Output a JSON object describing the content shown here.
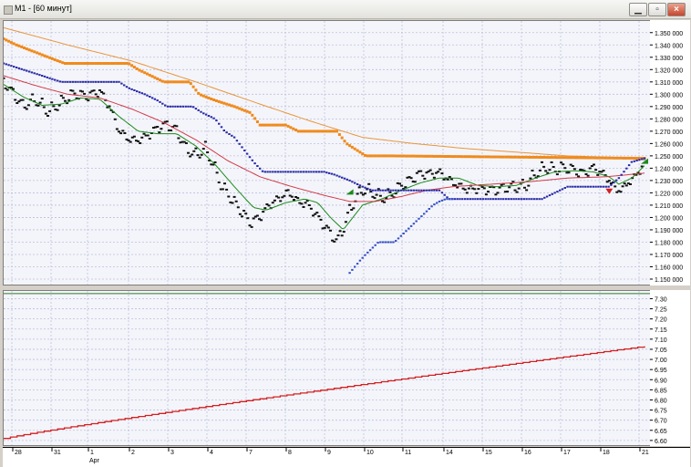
{
  "window": {
    "title": "M1 - [60 минут]",
    "minimize_icon": "minimize-icon",
    "restore_icon": "restore-icon",
    "close_icon": "close-icon"
  },
  "colors": {
    "price": "#111111",
    "ma_fast": "#1a8a1a",
    "ma_mid": "#d23a4a",
    "ma_slow": "#e8953c",
    "upper_band": "#f08a1c",
    "lower_band": "#2a2aa8",
    "lower_band_fine": "#3550c8",
    "indicator": "#d42020",
    "grid": "#bcc0dc",
    "arrow_up": "#1a8a1a",
    "arrow_down": "#d42020"
  },
  "chart_data": [
    {
      "type": "line",
      "y_ticks": [
        "1.350 000",
        "1.340 000",
        "1.330 000",
        "1.320 000",
        "1.310 000",
        "1.300 000",
        "1.290 000",
        "1.280 000",
        "1.270 000",
        "1.260 000",
        "1.250 000",
        "1.240 000",
        "1.230 000",
        "1.220 000",
        "1.210 000",
        "1.200 000",
        "1.190 000",
        "1.180 000",
        "1.170 000",
        "1.160 000",
        "1.150 000"
      ],
      "ylim": [
        1.15,
        1.355
      ],
      "x_domain": [
        0,
        1000
      ],
      "series": [
        {
          "key": "price",
          "style": "dots",
          "points": [
            [
              0,
              1.31
            ],
            [
              15,
              1.3
            ],
            [
              30,
              1.29
            ],
            [
              50,
              1.295
            ],
            [
              70,
              1.285
            ],
            [
              90,
              1.293
            ],
            [
              110,
              1.3
            ],
            [
              130,
              1.298
            ],
            [
              150,
              1.302
            ],
            [
              165,
              1.29
            ],
            [
              180,
              1.27
            ],
            [
              195,
              1.263
            ],
            [
              210,
              1.262
            ],
            [
              225,
              1.266
            ],
            [
              240,
              1.272
            ],
            [
              255,
              1.275
            ],
            [
              270,
              1.27
            ],
            [
              285,
              1.255
            ],
            [
              300,
              1.25
            ],
            [
              315,
              1.255
            ],
            [
              325,
              1.245
            ],
            [
              340,
              1.225
            ],
            [
              355,
              1.215
            ],
            [
              370,
              1.205
            ],
            [
              385,
              1.195
            ],
            [
              400,
              1.2
            ],
            [
              415,
              1.21
            ],
            [
              430,
              1.215
            ],
            [
              445,
              1.22
            ],
            [
              460,
              1.212
            ],
            [
              475,
              1.21
            ],
            [
              490,
              1.2
            ],
            [
              505,
              1.19
            ],
            [
              520,
              1.18
            ],
            [
              530,
              1.19
            ],
            [
              540,
              1.205
            ],
            [
              550,
              1.215
            ],
            [
              560,
              1.222
            ],
            [
              575,
              1.22
            ],
            [
              590,
              1.215
            ],
            [
              605,
              1.218
            ],
            [
              620,
              1.225
            ],
            [
              635,
              1.23
            ],
            [
              650,
              1.235
            ],
            [
              665,
              1.235
            ],
            [
              680,
              1.236
            ],
            [
              695,
              1.23
            ],
            [
              710,
              1.225
            ],
            [
              725,
              1.222
            ],
            [
              740,
              1.223
            ],
            [
              755,
              1.222
            ],
            [
              770,
              1.222
            ],
            [
              785,
              1.224
            ],
            [
              800,
              1.224
            ],
            [
              815,
              1.225
            ],
            [
              830,
              1.235
            ],
            [
              845,
              1.24
            ],
            [
              860,
              1.238
            ],
            [
              875,
              1.24
            ],
            [
              890,
              1.238
            ],
            [
              905,
              1.235
            ],
            [
              920,
              1.24
            ],
            [
              935,
              1.235
            ],
            [
              945,
              1.23
            ],
            [
              955,
              1.222
            ],
            [
              965,
              1.222
            ],
            [
              975,
              1.228
            ],
            [
              985,
              1.232
            ],
            [
              995,
              1.24
            ],
            [
              1000,
              1.245
            ]
          ]
        },
        {
          "key": "ma_fast",
          "style": "line",
          "points": [
            [
              0,
              1.308
            ],
            [
              30,
              1.298
            ],
            [
              60,
              1.291
            ],
            [
              90,
              1.292
            ],
            [
              120,
              1.297
            ],
            [
              150,
              1.296
            ],
            [
              180,
              1.282
            ],
            [
              210,
              1.27
            ],
            [
              240,
              1.268
            ],
            [
              270,
              1.268
            ],
            [
              300,
              1.258
            ],
            [
              330,
              1.243
            ],
            [
              360,
              1.225
            ],
            [
              390,
              1.208
            ],
            [
              410,
              1.206
            ],
            [
              440,
              1.212
            ],
            [
              470,
              1.215
            ],
            [
              490,
              1.212
            ],
            [
              510,
              1.2
            ],
            [
              530,
              1.19
            ],
            [
              545,
              1.2
            ],
            [
              560,
              1.21
            ],
            [
              590,
              1.215
            ],
            [
              620,
              1.222
            ],
            [
              650,
              1.228
            ],
            [
              680,
              1.232
            ],
            [
              710,
              1.232
            ],
            [
              740,
              1.226
            ],
            [
              770,
              1.225
            ],
            [
              800,
              1.226
            ],
            [
              830,
              1.232
            ],
            [
              860,
              1.237
            ],
            [
              890,
              1.238
            ],
            [
              920,
              1.237
            ],
            [
              945,
              1.233
            ],
            [
              960,
              1.227
            ],
            [
              980,
              1.232
            ],
            [
              1000,
              1.242
            ]
          ]
        },
        {
          "key": "ma_mid",
          "style": "line",
          "points": [
            [
              0,
              1.315
            ],
            [
              50,
              1.307
            ],
            [
              100,
              1.3
            ],
            [
              150,
              1.297
            ],
            [
              200,
              1.288
            ],
            [
              250,
              1.277
            ],
            [
              300,
              1.263
            ],
            [
              350,
              1.246
            ],
            [
              400,
              1.233
            ],
            [
              450,
              1.225
            ],
            [
              500,
              1.218
            ],
            [
              540,
              1.213
            ],
            [
              580,
              1.213
            ],
            [
              620,
              1.217
            ],
            [
              660,
              1.222
            ],
            [
              700,
              1.225
            ],
            [
              760,
              1.227
            ],
            [
              820,
              1.229
            ],
            [
              880,
              1.232
            ],
            [
              940,
              1.233
            ],
            [
              1000,
              1.236
            ]
          ]
        },
        {
          "key": "ma_slow",
          "style": "line",
          "points": [
            [
              0,
              1.354
            ],
            [
              100,
              1.34
            ],
            [
              200,
              1.327
            ],
            [
              300,
              1.31
            ],
            [
              400,
              1.292
            ],
            [
              480,
              1.278
            ],
            [
              560,
              1.265
            ],
            [
              640,
              1.26
            ],
            [
              720,
              1.256
            ],
            [
              800,
              1.253
            ],
            [
              880,
              1.25
            ],
            [
              1000,
              1.248
            ]
          ]
        },
        {
          "key": "upper_band",
          "style": "dots",
          "points": [
            [
              0,
              1.345
            ],
            [
              20,
              1.34
            ],
            [
              45,
              1.335
            ],
            [
              70,
              1.33
            ],
            [
              95,
              1.325
            ],
            [
              120,
              1.325
            ],
            [
              195,
              1.325
            ],
            [
              210,
              1.32
            ],
            [
              230,
              1.315
            ],
            [
              250,
              1.31
            ],
            [
              290,
              1.31
            ],
            [
              305,
              1.3
            ],
            [
              330,
              1.295
            ],
            [
              360,
              1.29
            ],
            [
              385,
              1.285
            ],
            [
              400,
              1.275
            ],
            [
              440,
              1.275
            ],
            [
              460,
              1.27
            ],
            [
              520,
              1.27
            ],
            [
              535,
              1.26
            ],
            [
              550,
              1.255
            ],
            [
              565,
              1.25
            ],
            [
              600,
              1.25
            ],
            [
              1000,
              1.248
            ]
          ]
        },
        {
          "key": "lower_band",
          "style": "dots",
          "points": [
            [
              0,
              1.325
            ],
            [
              30,
              1.32
            ],
            [
              60,
              1.315
            ],
            [
              90,
              1.31
            ],
            [
              180,
              1.31
            ],
            [
              195,
              1.305
            ],
            [
              220,
              1.3
            ],
            [
              240,
              1.295
            ],
            [
              255,
              1.29
            ],
            [
              295,
              1.29
            ],
            [
              310,
              1.285
            ],
            [
              330,
              1.28
            ],
            [
              345,
              1.27
            ],
            [
              360,
              1.265
            ],
            [
              375,
              1.255
            ],
            [
              390,
              1.245
            ],
            [
              405,
              1.237
            ],
            [
              500,
              1.237
            ],
            [
              515,
              1.235
            ],
            [
              540,
              1.23
            ],
            [
              560,
              1.225
            ],
            [
              575,
              1.222
            ],
            [
              680,
              1.222
            ],
            [
              695,
              1.215
            ],
            [
              840,
              1.215
            ],
            [
              860,
              1.22
            ],
            [
              880,
              1.225
            ],
            [
              945,
              1.225
            ],
            [
              960,
              1.232
            ],
            [
              980,
              1.245
            ],
            [
              1000,
              1.248
            ]
          ]
        },
        {
          "key": "lower_band_fine",
          "style": "dots",
          "points": [
            [
              540,
              1.155
            ],
            [
              548,
              1.16
            ],
            [
              556,
              1.165
            ],
            [
              565,
              1.17
            ],
            [
              575,
              1.175
            ],
            [
              585,
              1.18
            ],
            [
              595,
              1.18
            ],
            [
              610,
              1.18
            ],
            [
              620,
              1.185
            ],
            [
              630,
              1.19
            ],
            [
              640,
              1.195
            ],
            [
              650,
              1.2
            ],
            [
              660,
              1.205
            ],
            [
              670,
              1.21
            ],
            [
              680,
              1.213
            ],
            [
              690,
              1.215
            ],
            [
              700,
              1.215
            ]
          ]
        }
      ],
      "arrows": [
        {
          "direction": "up",
          "x": 540,
          "y": 1.22
        },
        {
          "direction": "down",
          "x": 945,
          "y": 1.222
        },
        {
          "direction": "up",
          "x": 1000,
          "y": 1.245
        }
      ]
    },
    {
      "type": "line",
      "y_ticks": [
        "7.30",
        "7.25",
        "7.20",
        "7.15",
        "7.10",
        "7.05",
        "7.00",
        "6.95",
        "6.90",
        "6.85",
        "6.80",
        "6.75",
        "6.70",
        "6.65",
        "6.60"
      ],
      "ylim": [
        6.595,
        7.32
      ],
      "x_domain": [
        0,
        1000
      ],
      "series": [
        {
          "key": "indicator",
          "style": "step",
          "start": 6.61,
          "end": 7.065
        }
      ],
      "reference_line": 7.325
    }
  ],
  "x_axis": {
    "labels": [
      "28",
      "31",
      "1",
      "2",
      "3",
      "4",
      "7",
      "8",
      "9",
      "10",
      "11",
      "14",
      "15",
      "16",
      "17",
      "18",
      "21"
    ],
    "month_label": "Apr",
    "month_under": "1"
  }
}
